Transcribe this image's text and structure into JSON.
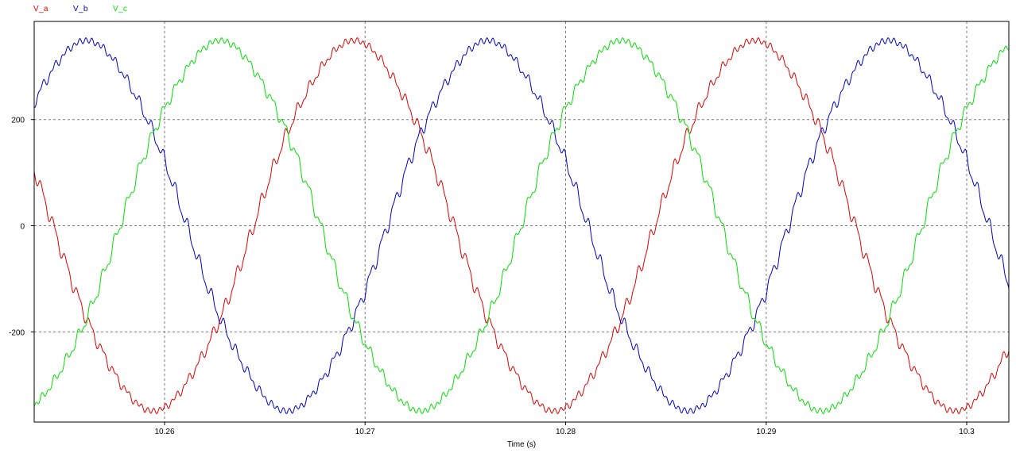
{
  "chart_data": {
    "type": "line",
    "title": "",
    "xlabel": "Time (s)",
    "ylabel": "",
    "xlim": [
      10.2535,
      10.3021
    ],
    "ylim": [
      -370,
      385
    ],
    "xticks": [
      10.26,
      10.27,
      10.28,
      10.29,
      10.3
    ],
    "xtick_labels": [
      "10.26",
      "10.27",
      "10.28",
      "10.29",
      "10.3"
    ],
    "yticks": [
      -200,
      0,
      200
    ],
    "ytick_labels": [
      "-200",
      "0",
      "200"
    ],
    "grid": true,
    "legend_position": "top-left",
    "series": [
      {
        "name": "V_a",
        "color": "#e00000",
        "amplitude": 345,
        "frequency_hz": 50,
        "phase_deg": 100
      },
      {
        "name": "V_b",
        "color": "#0000c8",
        "amplitude": 345,
        "frequency_hz": 50,
        "phase_deg": -20
      },
      {
        "name": "V_c",
        "color": "#00e000",
        "amplitude": 345,
        "frequency_hz": 50,
        "phase_deg": 220
      }
    ]
  }
}
